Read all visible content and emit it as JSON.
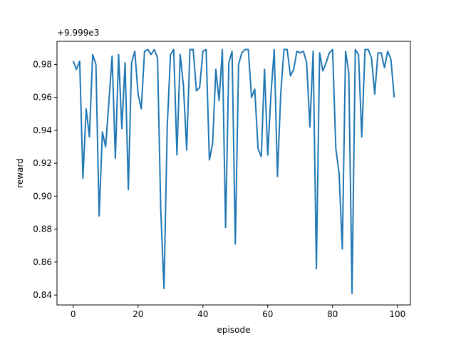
{
  "chart_data": {
    "type": "line",
    "xlabel": "episode",
    "ylabel": "reward",
    "offset_label": "+9.999e3",
    "xlim": [
      -5,
      104
    ],
    "ylim": [
      0.834,
      0.994
    ],
    "xticks": [
      0,
      20,
      40,
      60,
      80,
      100
    ],
    "yticks": [
      0.84,
      0.86,
      0.88,
      0.9,
      0.92,
      0.94,
      0.96,
      0.98
    ],
    "ytick_labels": [
      "0.84",
      "0.86",
      "0.88",
      "0.90",
      "0.92",
      "0.94",
      "0.96",
      "0.98"
    ],
    "grid": false,
    "series": [
      {
        "color": "#1f77b4",
        "x": [
          0,
          1,
          2,
          3,
          4,
          5,
          6,
          7,
          8,
          9,
          10,
          11,
          12,
          13,
          14,
          15,
          16,
          17,
          18,
          19,
          20,
          21,
          22,
          23,
          24,
          25,
          26,
          27,
          28,
          29,
          30,
          31,
          32,
          33,
          34,
          35,
          36,
          37,
          38,
          39,
          40,
          41,
          42,
          43,
          44,
          45,
          46,
          47,
          48,
          49,
          50,
          51,
          52,
          53,
          54,
          55,
          56,
          57,
          58,
          59,
          60,
          61,
          62,
          63,
          64,
          65,
          66,
          67,
          68,
          69,
          70,
          71,
          72,
          73,
          74,
          75,
          76,
          77,
          78,
          79,
          80,
          81,
          82,
          83,
          84,
          85,
          86,
          87,
          88,
          89,
          90,
          91,
          92,
          93,
          94,
          95,
          96,
          97,
          98,
          99
        ],
        "values": [
          0.982,
          0.977,
          0.982,
          0.911,
          0.953,
          0.936,
          0.986,
          0.98,
          0.888,
          0.939,
          0.93,
          0.957,
          0.985,
          0.923,
          0.986,
          0.941,
          0.981,
          0.904,
          0.981,
          0.988,
          0.962,
          0.953,
          0.988,
          0.989,
          0.986,
          0.989,
          0.984,
          0.892,
          0.844,
          0.942,
          0.986,
          0.989,
          0.925,
          0.986,
          0.967,
          0.928,
          0.989,
          0.989,
          0.964,
          0.966,
          0.988,
          0.989,
          0.922,
          0.932,
          0.977,
          0.958,
          0.989,
          0.881,
          0.981,
          0.988,
          0.871,
          0.98,
          0.987,
          0.989,
          0.989,
          0.96,
          0.965,
          0.929,
          0.924,
          0.977,
          0.925,
          0.962,
          0.989,
          0.912,
          0.962,
          0.989,
          0.989,
          0.973,
          0.977,
          0.988,
          0.987,
          0.988,
          0.981,
          0.942,
          0.988,
          0.856,
          0.987,
          0.976,
          0.981,
          0.987,
          0.989,
          0.929,
          0.914,
          0.868,
          0.988,
          0.975,
          0.841,
          0.989,
          0.986,
          0.936,
          0.989,
          0.989,
          0.984,
          0.962,
          0.987,
          0.987,
          0.978,
          0.988,
          0.983,
          0.96
        ]
      }
    ]
  }
}
